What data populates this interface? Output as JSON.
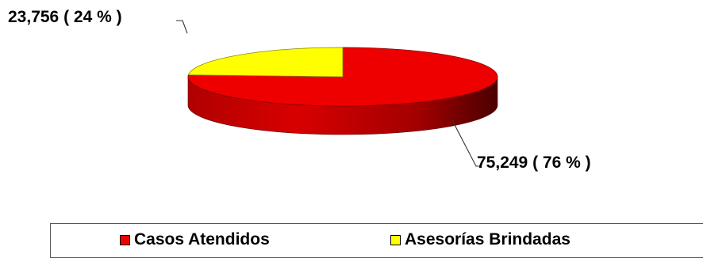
{
  "chart_data": {
    "type": "pie",
    "style": "3d",
    "title": "",
    "slices": [
      {
        "name": "Casos Atendidos",
        "value": 75249,
        "percent": 76,
        "color": "#ee0000"
      },
      {
        "name": "Asesorías Brindadas",
        "value": 23756,
        "percent": 24,
        "color": "#ffff00"
      }
    ],
    "data_labels": [
      "75,249 ( 76 % )",
      "23,756 ( 24 % )"
    ],
    "legend": {
      "placement": "bottom",
      "entries": [
        "Casos Atendidos",
        "Asesorías Brindadas"
      ]
    }
  }
}
